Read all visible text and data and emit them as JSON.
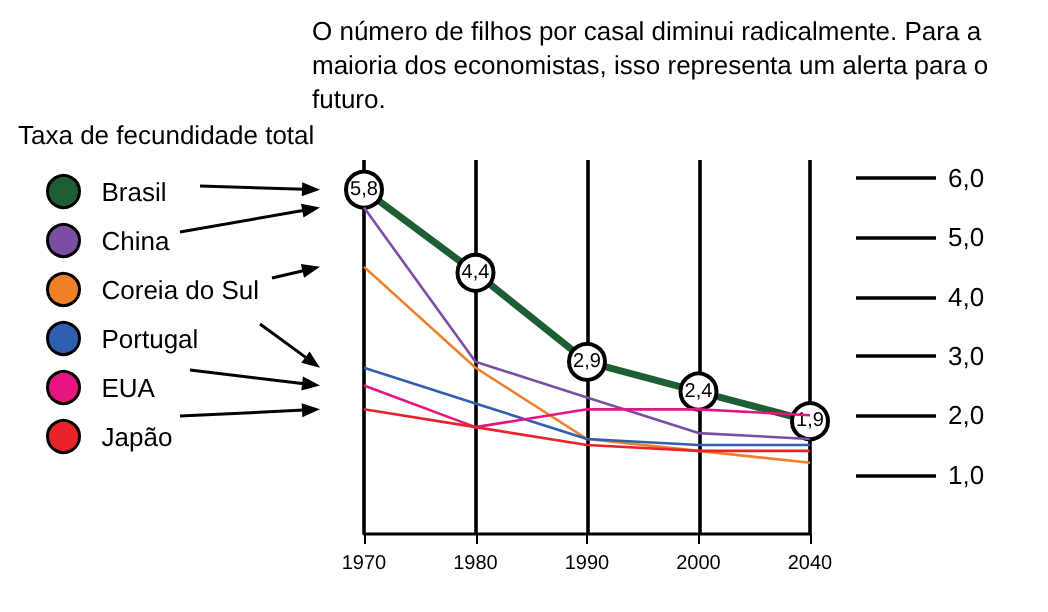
{
  "chart_data": {
    "type": "line",
    "title": "O número de filhos por casal diminui radicalmente. Para a maioria dos economistas, isso representa um alerta para o futuro.",
    "ylabel": "Taxa de fecundidade total",
    "categories": [
      "1970",
      "1980",
      "1990",
      "2000",
      "2040"
    ],
    "ylim": [
      0,
      6.3
    ],
    "yticks": [
      {
        "value": 1,
        "label": "1,0"
      },
      {
        "value": 2,
        "label": "2,0"
      },
      {
        "value": 3,
        "label": "3,0"
      },
      {
        "value": 4,
        "label": "4,0"
      },
      {
        "value": 5,
        "label": "5,0"
      },
      {
        "value": 6,
        "label": "6,0"
      }
    ],
    "grid": "x",
    "legend": "left",
    "series": [
      {
        "name": "Brasil",
        "color": "#1e5e34",
        "values": [
          5.8,
          4.4,
          2.9,
          2.4,
          1.9
        ],
        "value_labels": [
          "5,8",
          "4,4",
          "2,9",
          "2,4",
          "1,9"
        ],
        "marker": "circle"
      },
      {
        "name": "China",
        "color": "#7b4ea3",
        "values": [
          5.5,
          2.9,
          2.3,
          1.7,
          1.6
        ],
        "marker": "none"
      },
      {
        "name": "Coreia do Sul",
        "color": "#f07f2a",
        "values": [
          4.5,
          2.8,
          1.6,
          1.4,
          1.2
        ],
        "marker": "none"
      },
      {
        "name": "Portugal",
        "color": "#2f5fb0",
        "values": [
          2.8,
          2.2,
          1.6,
          1.5,
          1.5
        ],
        "marker": "none"
      },
      {
        "name": "EUA",
        "color": "#e8147f",
        "values": [
          2.5,
          1.8,
          2.1,
          2.1,
          2.0
        ],
        "marker": "none"
      },
      {
        "name": "Japão",
        "color": "#e8232a",
        "values": [
          2.1,
          1.8,
          1.5,
          1.4,
          1.4
        ],
        "marker": "none"
      }
    ]
  }
}
